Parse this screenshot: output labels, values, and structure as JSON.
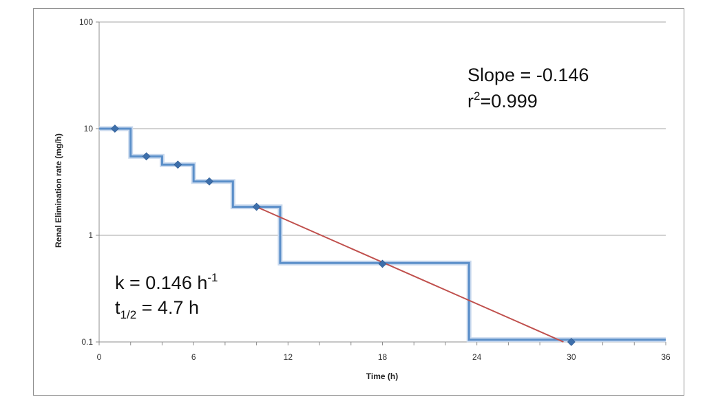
{
  "chart_data": {
    "type": "line",
    "title": "",
    "xlabel": "Time (h)",
    "ylabel": "Renal Elimination rate (mg/h)",
    "xlim": [
      0,
      36
    ],
    "ylim": [
      0.1,
      100
    ],
    "yscale": "log",
    "x_ticks": [
      0,
      6,
      12,
      18,
      24,
      30,
      36
    ],
    "y_ticks": [
      0.1,
      1,
      10,
      100
    ],
    "x_tick_labels": [
      "0",
      "6",
      "12",
      "18",
      "24",
      "30",
      "36"
    ],
    "y_tick_labels": [
      "0.1",
      "1",
      "10",
      "100"
    ],
    "grid": true,
    "legend": "none",
    "series": [
      {
        "kind": "step",
        "color": "#5b8fc9",
        "steps": [
          {
            "x0": 0,
            "x1": 2,
            "y": 10
          },
          {
            "x0": 2,
            "x1": 4,
            "y": 5.5
          },
          {
            "x0": 4,
            "x1": 6,
            "y": 4.6
          },
          {
            "x0": 6,
            "x1": 8.5,
            "y": 3.2
          },
          {
            "x0": 8.5,
            "x1": 11.5,
            "y": 1.85
          },
          {
            "x0": 11.5,
            "x1": 23.5,
            "y": 0.55
          },
          {
            "x0": 23.5,
            "x1": 36,
            "y": 0.105
          }
        ]
      },
      {
        "kind": "points",
        "color": "#3d6fab",
        "x": [
          1,
          3,
          5,
          7,
          10,
          18,
          30
        ],
        "y": [
          10,
          5.5,
          4.6,
          3.2,
          1.85,
          0.54,
          0.1
        ]
      },
      {
        "kind": "regression",
        "color": "#c0504d",
        "x": [
          10,
          29.5
        ],
        "y": [
          1.85,
          0.1
        ]
      }
    ],
    "annotations": {
      "slope_text": "Slope = -0.146",
      "r2_prefix": "r",
      "r2_sup": "2",
      "r2_suffix": "=0.999",
      "k_prefix": "k = 0.146 h",
      "k_sup": "-1",
      "t_prefix": "t",
      "t_sub": "1/2",
      "t_suffix": " = 4.7 h"
    }
  }
}
